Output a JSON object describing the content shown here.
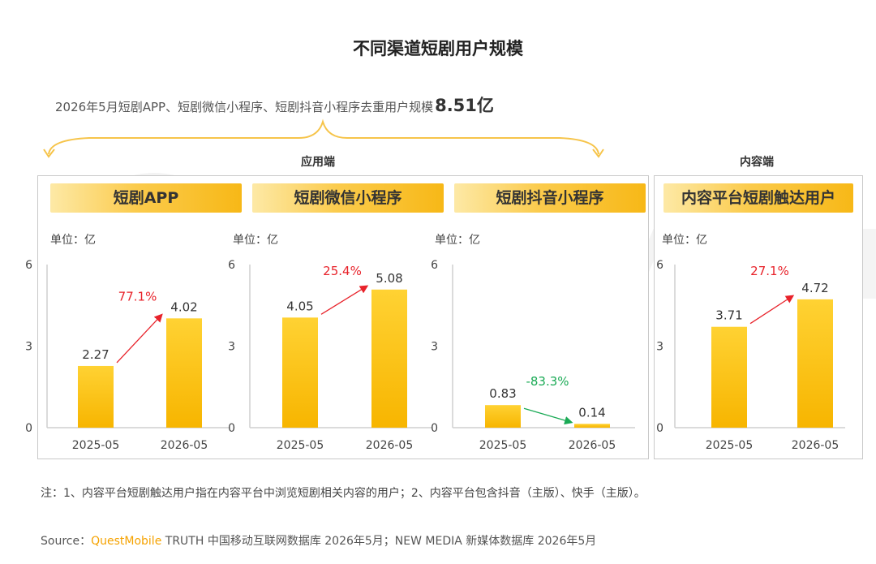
{
  "title": "不同渠道短剧用户规模",
  "summary": {
    "text": "2026年5月短剧APP、短剧微信小程序、短剧抖音小程序去重用户规模",
    "value": "8.51亿"
  },
  "groups": {
    "app_side": "应用端",
    "content_side": "内容端"
  },
  "watermark_text": "QUESTMOBILE",
  "colors": {
    "bar_top": "#ffd233",
    "bar_bottom": "#f7b500",
    "up_arrow": "#e8222a",
    "down_arrow": "#1aaa55",
    "axis": "#cfcfcf"
  },
  "chart_data": [
    {
      "type": "bar",
      "title": "短剧APP",
      "unit_label": "单位：亿",
      "categories": [
        "2025-05",
        "2026-05"
      ],
      "values": [
        2.27,
        4.02
      ],
      "value_labels": [
        "2.27",
        "4.02"
      ],
      "change_label": "77.1%",
      "change_direction": "up",
      "ylim": [
        0,
        6
      ],
      "yticks": [
        "0",
        "3",
        "6"
      ]
    },
    {
      "type": "bar",
      "title": "短剧微信小程序",
      "unit_label": "单位：亿",
      "categories": [
        "2025-05",
        "2026-05"
      ],
      "values": [
        4.05,
        5.08
      ],
      "value_labels": [
        "4.05",
        "5.08"
      ],
      "change_label": "25.4%",
      "change_direction": "up",
      "ylim": [
        0,
        6
      ],
      "yticks": [
        "0",
        "3",
        "6"
      ]
    },
    {
      "type": "bar",
      "title": "短剧抖音小程序",
      "unit_label": "单位：亿",
      "categories": [
        "2025-05",
        "2026-05"
      ],
      "values": [
        0.83,
        0.14
      ],
      "value_labels": [
        "0.83",
        "0.14"
      ],
      "change_label": "-83.3%",
      "change_direction": "down",
      "ylim": [
        0,
        6
      ],
      "yticks": [
        "0",
        "3",
        "6"
      ]
    },
    {
      "type": "bar",
      "title": "内容平台短剧触达用户",
      "unit_label": "单位：亿",
      "categories": [
        "2025-05",
        "2026-05"
      ],
      "values": [
        3.71,
        4.72
      ],
      "value_labels": [
        "3.71",
        "4.72"
      ],
      "change_label": "27.1%",
      "change_direction": "up",
      "ylim": [
        0,
        6
      ],
      "yticks": [
        "0",
        "3",
        "6"
      ]
    }
  ],
  "note": "注：1、内容平台短剧触达用户指在内容平台中浏览短剧相关内容的用户；2、内容平台包含抖音（主版）、快手（主版）。",
  "source": {
    "prefix": "Source：",
    "brand": "QuestMobile",
    "rest": " TRUTH 中国移动互联网数据库 2026年5月；NEW MEDIA 新媒体数据库 2026年5月"
  }
}
